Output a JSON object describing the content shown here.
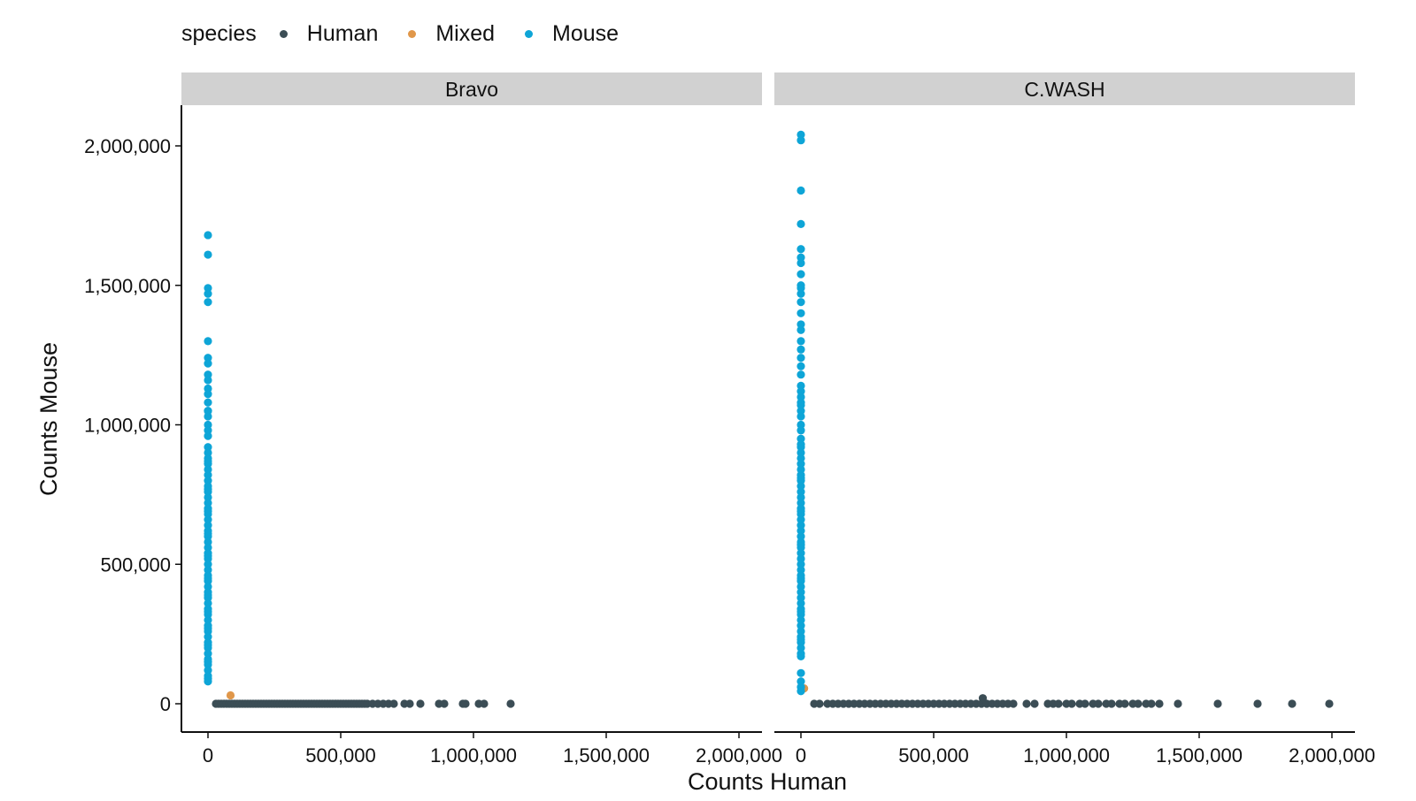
{
  "legend": {
    "title": "species",
    "items": [
      {
        "label": "Human",
        "color": "#3b4d55"
      },
      {
        "label": "Mixed",
        "color": "#e0974a"
      },
      {
        "label": "Mouse",
        "color": "#0ea5d7"
      }
    ]
  },
  "chart_data": {
    "type": "scatter",
    "xlabel": "Counts Human",
    "ylabel": "Counts Mouse",
    "xlim": [
      0,
      2000000
    ],
    "ylim": [
      0,
      2000000
    ],
    "x_ticks": [
      0,
      500000,
      1000000,
      1500000,
      2000000
    ],
    "x_tick_labels": [
      "0",
      "500,000",
      "1,000,000",
      "1,500,000",
      "2,000,000"
    ],
    "y_ticks": [
      0,
      500000,
      1000000,
      1500000,
      2000000
    ],
    "y_tick_labels": [
      "0",
      "500,000",
      "1,000,000",
      "1,500,000",
      "2,000,000"
    ],
    "grid": false,
    "legend_position": "top-left",
    "panels": [
      {
        "title": "Bravo",
        "series": [
          {
            "name": "Mouse",
            "color": "#0ea5d7",
            "x": [
              0,
              0,
              0,
              0,
              0,
              0,
              0,
              0,
              0,
              0,
              0,
              0,
              0,
              0,
              0,
              0,
              0,
              0,
              0,
              0,
              0,
              0,
              0,
              0,
              0,
              0,
              0,
              0,
              0,
              0,
              0,
              0,
              0,
              0,
              0,
              0,
              0,
              0,
              0,
              0,
              0,
              0,
              0,
              0,
              0,
              0,
              0,
              0,
              0,
              0,
              0,
              0,
              0,
              0,
              0,
              0,
              0,
              0,
              0,
              0,
              0,
              0,
              0,
              0,
              0,
              0,
              0,
              0,
              0,
              0,
              0,
              0,
              0,
              0
            ],
            "y": [
              1680000,
              1610000,
              1490000,
              1440000,
              1300000,
              1240000,
              1220000,
              1180000,
              1160000,
              1130000,
              1110000,
              1080000,
              1050000,
              1030000,
              1000000,
              980000,
              960000,
              920000,
              900000,
              880000,
              860000,
              840000,
              820000,
              800000,
              780000,
              760000,
              740000,
              720000,
              700000,
              680000,
              660000,
              640000,
              620000,
              600000,
              580000,
              560000,
              540000,
              520000,
              500000,
              480000,
              460000,
              440000,
              420000,
              400000,
              380000,
              360000,
              340000,
              320000,
              300000,
              280000,
              260000,
              240000,
              220000,
              200000,
              180000,
              160000,
              140000,
              120000,
              100000,
              80000,
              1470000,
              1050000,
              870000,
              770000,
              690000,
              610000,
              530000,
              450000,
              390000,
              330000,
              270000,
              210000,
              150000,
              90000
            ]
          },
          {
            "name": "Mixed",
            "color": "#e0974a",
            "x": [
              85000
            ],
            "y": [
              30000
            ]
          },
          {
            "name": "Human",
            "color": "#3b4d55",
            "x": [
              30000,
              40000,
              50000,
              60000,
              70000,
              80000,
              90000,
              100000,
              110000,
              120000,
              130000,
              140000,
              150000,
              160000,
              170000,
              180000,
              190000,
              200000,
              210000,
              220000,
              230000,
              240000,
              250000,
              260000,
              270000,
              280000,
              290000,
              300000,
              310000,
              320000,
              330000,
              340000,
              350000,
              360000,
              370000,
              380000,
              390000,
              400000,
              410000,
              420000,
              430000,
              440000,
              450000,
              460000,
              470000,
              480000,
              490000,
              500000,
              510000,
              520000,
              530000,
              540000,
              550000,
              560000,
              570000,
              580000,
              590000,
              600000,
              620000,
              640000,
              660000,
              680000,
              700000,
              740000,
              760000,
              800000,
              870000,
              890000,
              960000,
              970000,
              1020000,
              1040000,
              1140000
            ],
            "y": [
              0,
              0,
              0,
              0,
              0,
              0,
              0,
              0,
              0,
              0,
              0,
              0,
              0,
              0,
              0,
              0,
              0,
              0,
              0,
              0,
              0,
              0,
              0,
              0,
              0,
              0,
              0,
              0,
              0,
              0,
              0,
              0,
              0,
              0,
              0,
              0,
              0,
              0,
              0,
              0,
              0,
              0,
              0,
              0,
              0,
              0,
              0,
              0,
              0,
              0,
              0,
              0,
              0,
              0,
              0,
              0,
              0,
              0,
              0,
              0,
              0,
              0,
              0,
              0,
              0,
              0,
              0,
              0,
              0,
              0,
              0,
              0,
              0
            ]
          }
        ]
      },
      {
        "title": "C.WASH",
        "series": [
          {
            "name": "Mouse",
            "color": "#0ea5d7",
            "x": [
              0,
              0,
              0,
              0,
              0,
              0,
              0,
              0,
              0,
              0,
              0,
              0,
              0,
              0,
              0,
              0,
              0,
              0,
              0,
              0,
              0,
              0,
              0,
              0,
              0,
              0,
              0,
              0,
              0,
              0,
              0,
              0,
              0,
              0,
              0,
              0,
              0,
              0,
              0,
              0,
              0,
              0,
              0,
              0,
              0,
              0,
              0,
              0,
              0,
              0,
              0,
              0,
              0,
              0,
              0,
              0,
              0,
              0,
              0,
              0,
              0,
              0,
              0,
              0,
              0,
              0,
              0,
              0,
              0,
              0,
              0,
              0,
              0,
              0,
              0,
              0,
              0,
              0,
              0,
              0
            ],
            "y": [
              2040000,
              2020000,
              1840000,
              1720000,
              1630000,
              1600000,
              1580000,
              1540000,
              1500000,
              1470000,
              1440000,
              1400000,
              1340000,
              1300000,
              1270000,
              1240000,
              1180000,
              1140000,
              1120000,
              1100000,
              1080000,
              1050000,
              1030000,
              1000000,
              980000,
              950000,
              920000,
              900000,
              880000,
              860000,
              840000,
              820000,
              800000,
              780000,
              760000,
              740000,
              720000,
              700000,
              680000,
              660000,
              640000,
              620000,
              600000,
              580000,
              560000,
              540000,
              520000,
              500000,
              480000,
              460000,
              440000,
              420000,
              400000,
              380000,
              360000,
              340000,
              320000,
              300000,
              280000,
              260000,
              240000,
              220000,
              200000,
              180000,
              170000,
              80000,
              60000,
              45000,
              1490000,
              1360000,
              1210000,
              1070000,
              930000,
              810000,
              690000,
              570000,
              450000,
              330000,
              230000,
              110000
            ]
          },
          {
            "name": "Mixed",
            "color": "#e0974a",
            "x": [
              12000
            ],
            "y": [
              55000
            ]
          },
          {
            "name": "Human",
            "color": "#3b4d55",
            "x": [
              50000,
              70000,
              100000,
              120000,
              140000,
              160000,
              180000,
              200000,
              220000,
              240000,
              260000,
              280000,
              300000,
              320000,
              340000,
              360000,
              380000,
              400000,
              420000,
              440000,
              460000,
              480000,
              500000,
              520000,
              540000,
              560000,
              580000,
              600000,
              620000,
              640000,
              660000,
              680000,
              700000,
              720000,
              740000,
              760000,
              780000,
              800000,
              850000,
              880000,
              930000,
              950000,
              970000,
              1000000,
              1020000,
              1050000,
              1070000,
              1100000,
              1120000,
              1150000,
              1170000,
              1200000,
              1220000,
              1250000,
              1270000,
              1300000,
              1320000,
              1350000,
              1420000,
              1570000,
              1720000,
              1850000,
              1990000,
              685000
            ],
            "y": [
              0,
              0,
              0,
              0,
              0,
              0,
              0,
              0,
              0,
              0,
              0,
              0,
              0,
              0,
              0,
              0,
              0,
              0,
              0,
              0,
              0,
              0,
              0,
              0,
              0,
              0,
              0,
              0,
              0,
              0,
              0,
              0,
              0,
              0,
              0,
              0,
              0,
              0,
              0,
              0,
              0,
              0,
              0,
              0,
              0,
              0,
              0,
              0,
              0,
              0,
              0,
              0,
              0,
              0,
              0,
              0,
              0,
              0,
              0,
              0,
              0,
              0,
              0,
              20000
            ]
          }
        ]
      }
    ]
  }
}
